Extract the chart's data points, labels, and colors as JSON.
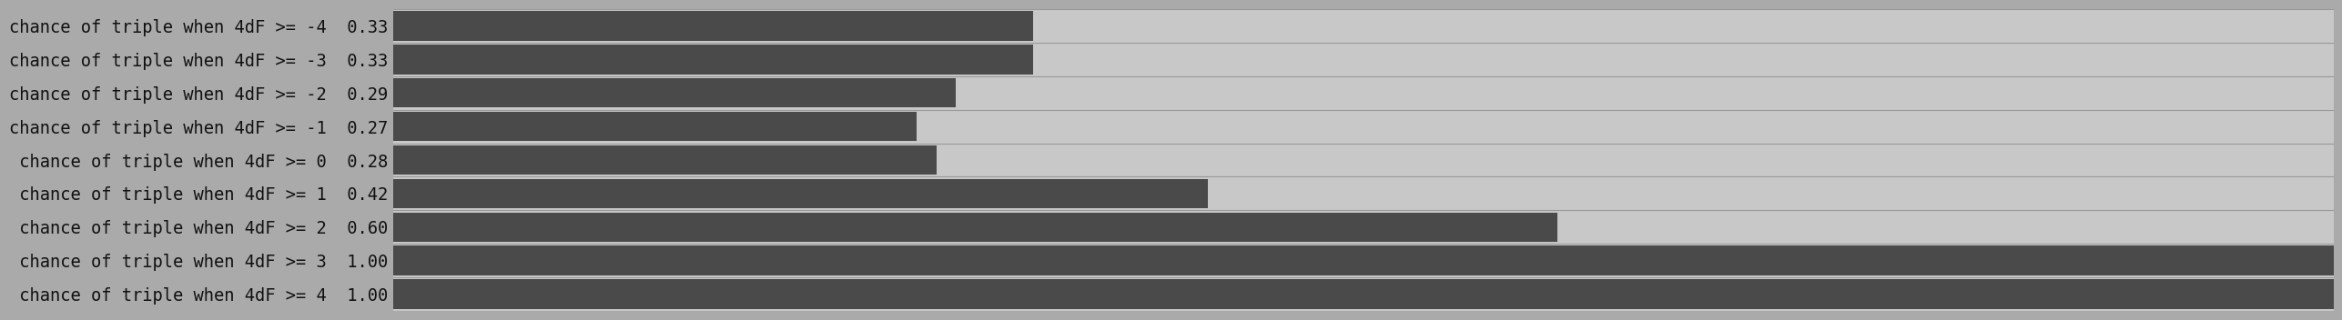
{
  "categories": [
    "chance of triple when 4dF >= -4  0.33",
    "chance of triple when 4dF >= -3  0.33",
    "chance of triple when 4dF >= -2  0.29",
    "chance of triple when 4dF >= -1  0.27",
    " chance of triple when 4dF >= 0  0.28",
    " chance of triple when 4dF >= 1  0.42",
    " chance of triple when 4dF >= 2  0.60",
    " chance of triple when 4dF >= 3  1.00",
    " chance of triple when 4dF >= 4  1.00"
  ],
  "values": [
    0.33,
    0.33,
    0.29,
    0.27,
    0.28,
    0.42,
    0.6,
    1.0,
    1.0
  ],
  "bar_color": "#4a4a4a",
  "background_color": "#aaaaaa",
  "bar_background_color": "#c8c8c8",
  "label_color": "#111111",
  "separator_color": "#999999",
  "xlim": [
    0,
    1.0
  ],
  "bar_height": 0.88,
  "label_fontsize": 13.5,
  "label_font": "monospace"
}
